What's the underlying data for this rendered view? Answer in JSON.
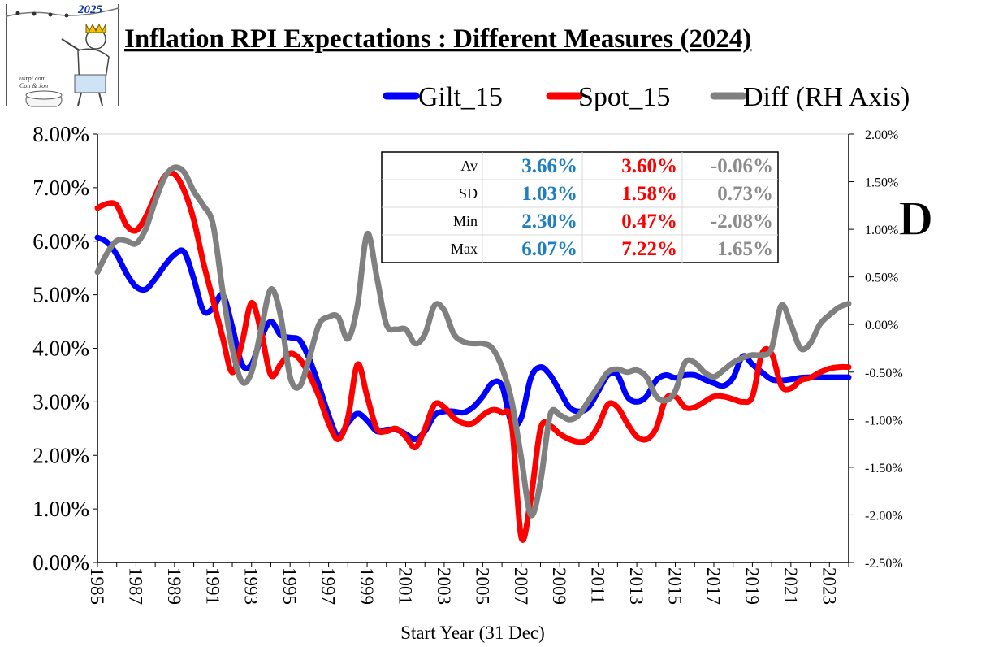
{
  "title": "Inflation RPI Expectations : Different Measures (2024)",
  "logo": {
    "year": "2025",
    "site": "ukrpi.com",
    "credit": "Con & Jon"
  },
  "panel_letter": "D",
  "colors": {
    "gilt": "#0000ff",
    "spot": "#ff0000",
    "diff": "#808080",
    "stat_gilt": "#1f7fc0",
    "stat_spot": "#ff0000",
    "stat_diff": "#8c8c8c"
  },
  "legend": [
    {
      "name": "Gilt_15",
      "color": "#0000ff"
    },
    {
      "name": "Spot_15",
      "color": "#ff0000"
    },
    {
      "name": "Diff (RH Axis)",
      "color": "#808080"
    }
  ],
  "stats": {
    "rows": [
      {
        "label": "Av",
        "gilt": "3.66%",
        "spot": "3.60%",
        "diff": "-0.06%"
      },
      {
        "label": "SD",
        "gilt": "1.03%",
        "spot": "1.58%",
        "diff": "0.73%"
      },
      {
        "label": "Min",
        "gilt": "2.30%",
        "spot": "0.47%",
        "diff": "-2.08%"
      },
      {
        "label": "Max",
        "gilt": "6.07%",
        "spot": "7.22%",
        "diff": "1.65%"
      }
    ]
  },
  "chart_data": {
    "type": "line",
    "title": "Inflation RPI Expectations : Different Measures (2024)",
    "xlabel": "Start Year (31 Dec)",
    "ylabel": "",
    "ylim": [
      0,
      8
    ],
    "y2lim": [
      -2.5,
      2.0
    ],
    "y_ticks": [
      "0.00%",
      "1.00%",
      "2.00%",
      "3.00%",
      "4.00%",
      "5.00%",
      "6.00%",
      "7.00%",
      "8.00%"
    ],
    "y2_ticks": [
      "-2.50%",
      "-2.00%",
      "-1.50%",
      "-1.00%",
      "-0.50%",
      "0.00%",
      "0.50%",
      "1.00%",
      "1.50%",
      "2.00%"
    ],
    "x_ticks": [
      "1985",
      "1987",
      "1989",
      "1991",
      "1993",
      "1995",
      "1997",
      "1999",
      "2001",
      "2003",
      "2005",
      "2007",
      "2009",
      "2011",
      "2013",
      "2015",
      "2017",
      "2019",
      "2021",
      "2023"
    ],
    "x": [
      1985,
      1985.5,
      1986,
      1986.5,
      1987,
      1987.5,
      1988,
      1988.5,
      1989,
      1989.5,
      1990,
      1990.5,
      1991,
      1991.5,
      1992,
      1992.5,
      1993,
      1993.5,
      1994,
      1994.5,
      1995,
      1995.5,
      1996,
      1996.5,
      1997,
      1997.5,
      1998,
      1998.5,
      1999,
      1999.5,
      2000,
      2000.5,
      2001,
      2001.5,
      2002,
      2002.5,
      2003,
      2003.5,
      2004,
      2004.5,
      2005,
      2005.5,
      2006,
      2006.5,
      2007,
      2007.5,
      2008,
      2008.5,
      2009,
      2009.5,
      2010,
      2010.5,
      2011,
      2011.5,
      2012,
      2012.5,
      2013,
      2013.5,
      2014,
      2014.5,
      2015,
      2015.5,
      2016,
      2016.5,
      2017,
      2017.5,
      2018,
      2018.5,
      2019,
      2019.5,
      2020,
      2020.5,
      2021,
      2021.5,
      2022,
      2022.5,
      2023,
      2023.5,
      2024
    ],
    "series": [
      {
        "name": "Gilt_15",
        "axis": "left",
        "values": [
          6.07,
          5.98,
          5.75,
          5.4,
          5.15,
          5.1,
          5.3,
          5.55,
          5.75,
          5.8,
          5.3,
          4.7,
          4.75,
          5.0,
          4.4,
          3.7,
          3.7,
          4.2,
          4.5,
          4.25,
          4.2,
          4.15,
          3.8,
          3.3,
          2.75,
          2.35,
          2.6,
          2.78,
          2.65,
          2.45,
          2.48,
          2.48,
          2.4,
          2.3,
          2.45,
          2.75,
          2.82,
          2.82,
          2.8,
          2.9,
          3.1,
          3.35,
          3.3,
          2.6,
          2.7,
          3.45,
          3.65,
          3.5,
          3.2,
          2.9,
          2.82,
          2.9,
          3.2,
          3.5,
          3.5,
          3.1,
          3.0,
          3.1,
          3.4,
          3.5,
          3.45,
          3.5,
          3.5,
          3.42,
          3.35,
          3.3,
          3.45,
          3.85,
          3.7,
          3.55,
          3.42,
          3.4,
          3.42,
          3.45,
          3.46,
          3.46,
          3.46,
          3.46,
          3.46
        ]
      },
      {
        "name": "Spot_15",
        "axis": "left",
        "values": [
          6.62,
          6.7,
          6.67,
          6.3,
          6.2,
          6.45,
          6.85,
          7.22,
          7.25,
          6.95,
          6.4,
          5.6,
          4.9,
          4.2,
          3.55,
          4.1,
          4.85,
          4.3,
          3.5,
          3.7,
          3.9,
          3.8,
          3.5,
          3.1,
          2.6,
          2.3,
          2.7,
          3.7,
          3.1,
          2.5,
          2.45,
          2.5,
          2.35,
          2.15,
          2.5,
          2.95,
          2.9,
          2.7,
          2.6,
          2.6,
          2.75,
          2.85,
          2.8,
          2.6,
          0.47,
          1.2,
          2.5,
          2.55,
          2.4,
          2.3,
          2.25,
          2.3,
          2.55,
          2.95,
          2.9,
          2.6,
          2.35,
          2.3,
          2.5,
          3.05,
          3.1,
          2.9,
          2.9,
          3.0,
          3.1,
          3.1,
          3.05,
          3.0,
          3.1,
          3.9,
          3.9,
          3.3,
          3.25,
          3.4,
          3.45,
          3.55,
          3.62,
          3.65,
          3.65
        ]
      },
      {
        "name": "Diff (RH Axis)",
        "axis": "right",
        "values": [
          0.55,
          0.75,
          0.88,
          0.88,
          0.85,
          1.0,
          1.3,
          1.55,
          1.65,
          1.6,
          1.4,
          1.25,
          1.05,
          0.35,
          -0.25,
          -0.6,
          -0.5,
          -0.05,
          0.37,
          0.1,
          -0.55,
          -0.65,
          -0.35,
          0.0,
          0.08,
          0.08,
          -0.15,
          0.2,
          0.95,
          0.5,
          0.0,
          -0.05,
          -0.05,
          -0.2,
          -0.1,
          0.2,
          0.15,
          -0.1,
          -0.18,
          -0.2,
          -0.2,
          -0.25,
          -0.45,
          -0.8,
          -1.4,
          -2.0,
          -1.65,
          -0.95,
          -0.95,
          -1.0,
          -0.95,
          -0.8,
          -0.65,
          -0.5,
          -0.47,
          -0.5,
          -0.48,
          -0.55,
          -0.75,
          -0.8,
          -0.7,
          -0.4,
          -0.4,
          -0.5,
          -0.55,
          -0.48,
          -0.4,
          -0.35,
          -0.32,
          -0.32,
          -0.25,
          0.2,
          0.0,
          -0.25,
          -0.2,
          0.0,
          0.1,
          0.18,
          0.22
        ]
      }
    ]
  }
}
